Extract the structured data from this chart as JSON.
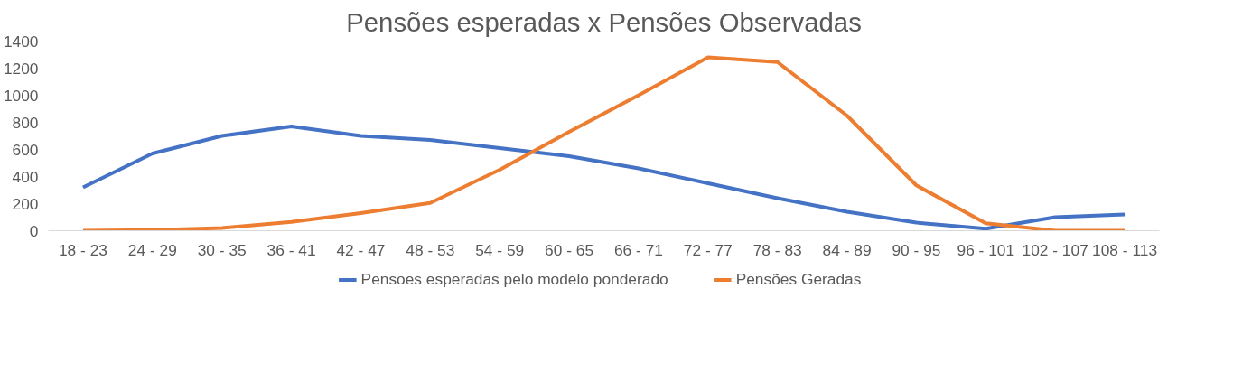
{
  "chart_data": {
    "type": "line",
    "title": "Pensões esperadas x Pensões Observadas",
    "categories": [
      "18 - 23",
      "24 - 29",
      "30 - 35",
      "36 - 41",
      "42 - 47",
      "48 - 53",
      "54 - 59",
      "60 - 65",
      "66 - 71",
      "72 - 77",
      "78 - 83",
      "84 - 89",
      "90 - 95",
      "96 - 101",
      "102 - 107",
      "108 - 113"
    ],
    "series": [
      {
        "name": "Pensoes esperadas pelo modelo ponderado",
        "color": "#4472c4",
        "values": [
          320,
          570,
          700,
          770,
          700,
          670,
          610,
          550,
          460,
          350,
          240,
          140,
          60,
          15,
          100,
          120
        ]
      },
      {
        "name": "Pensões Geradas",
        "color": "#ed7d31",
        "values": [
          0,
          5,
          20,
          65,
          130,
          205,
          450,
          730,
          1000,
          1280,
          1245,
          850,
          335,
          55,
          0,
          0
        ]
      }
    ],
    "ylim": [
      0,
      1400
    ],
    "yticks": [
      0,
      200,
      400,
      600,
      800,
      1000,
      1200,
      1400
    ],
    "grid": false,
    "legend": "bottom",
    "line_style": "solid"
  }
}
